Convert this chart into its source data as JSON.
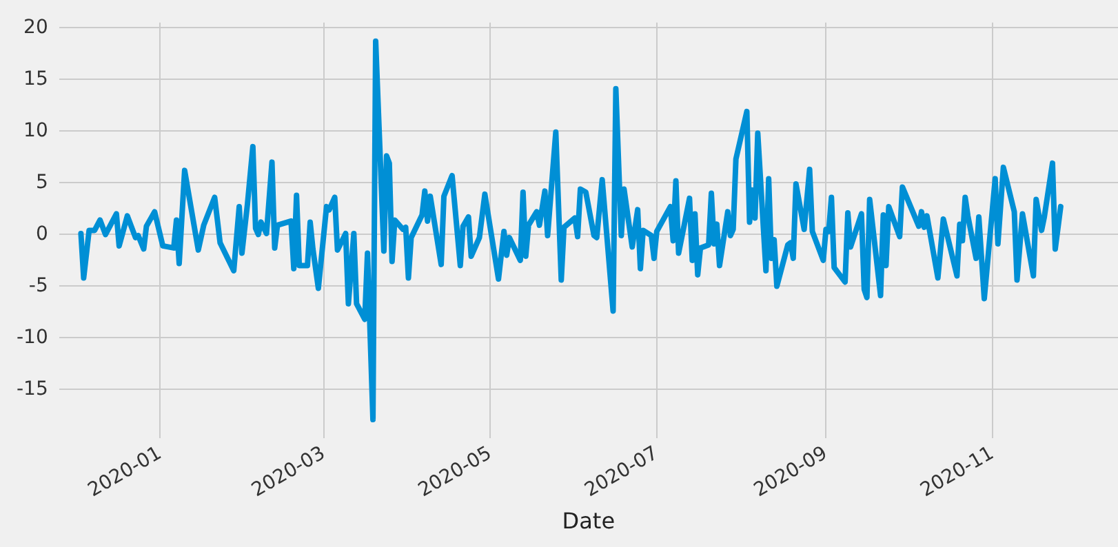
{
  "chart_data": {
    "type": "line",
    "xlabel": "Date",
    "x": [
      "2019-12-03",
      "2019-12-04",
      "2019-12-06",
      "2019-12-08",
      "2019-12-10",
      "2019-12-12",
      "2019-12-16",
      "2019-12-17",
      "2019-12-20",
      "2019-12-23",
      "2019-12-24",
      "2019-12-26",
      "2019-12-27",
      "2019-12-30",
      "2020-01-02",
      "2020-01-06",
      "2020-01-07",
      "2020-01-08",
      "2020-01-10",
      "2020-01-15",
      "2020-01-17",
      "2020-01-21",
      "2020-01-23",
      "2020-01-28",
      "2020-01-30",
      "2020-01-31",
      "2020-02-02",
      "2020-02-04",
      "2020-02-05",
      "2020-02-06",
      "2020-02-07",
      "2020-02-09",
      "2020-02-11",
      "2020-02-12",
      "2020-02-13",
      "2020-02-18",
      "2020-02-19",
      "2020-02-20",
      "2020-02-21",
      "2020-02-24",
      "2020-02-25",
      "2020-02-26",
      "2020-02-28",
      "2020-03-02",
      "2020-03-03",
      "2020-03-05",
      "2020-03-06",
      "2020-03-09",
      "2020-03-10",
      "2020-03-12",
      "2020-03-13",
      "2020-03-16",
      "2020-03-17",
      "2020-03-19",
      "2020-03-20",
      "2020-03-23",
      "2020-03-24",
      "2020-03-25",
      "2020-03-26",
      "2020-03-27",
      "2020-03-30",
      "2020-03-31",
      "2020-04-01",
      "2020-04-02",
      "2020-04-06",
      "2020-04-07",
      "2020-04-08",
      "2020-04-09",
      "2020-04-13",
      "2020-04-14",
      "2020-04-17",
      "2020-04-20",
      "2020-04-21",
      "2020-04-23",
      "2020-04-24",
      "2020-04-27",
      "2020-04-29",
      "2020-05-04",
      "2020-05-06",
      "2020-05-07",
      "2020-05-08",
      "2020-05-12",
      "2020-05-13",
      "2020-05-14",
      "2020-05-15",
      "2020-05-18",
      "2020-05-19",
      "2020-05-21",
      "2020-05-22",
      "2020-05-25",
      "2020-05-27",
      "2020-05-28",
      "2020-06-01",
      "2020-06-02",
      "2020-06-03",
      "2020-06-05",
      "2020-06-08",
      "2020-06-09",
      "2020-06-11",
      "2020-06-15",
      "2020-06-16",
      "2020-06-18",
      "2020-06-19",
      "2020-06-22",
      "2020-06-24",
      "2020-06-25",
      "2020-06-26",
      "2020-06-29",
      "2020-06-30",
      "2020-07-01",
      "2020-07-06",
      "2020-07-07",
      "2020-07-08",
      "2020-07-09",
      "2020-07-13",
      "2020-07-14",
      "2020-07-15",
      "2020-07-16",
      "2020-07-17",
      "2020-07-20",
      "2020-07-21",
      "2020-07-22",
      "2020-07-23",
      "2020-07-24",
      "2020-07-27",
      "2020-07-28",
      "2020-07-29",
      "2020-07-30",
      "2020-08-03",
      "2020-08-04",
      "2020-08-05",
      "2020-08-06",
      "2020-08-07",
      "2020-08-10",
      "2020-08-11",
      "2020-08-12",
      "2020-08-13",
      "2020-08-14",
      "2020-08-18",
      "2020-08-19",
      "2020-08-20",
      "2020-08-21",
      "2020-08-24",
      "2020-08-26",
      "2020-08-27",
      "2020-08-31",
      "2020-09-01",
      "2020-09-02",
      "2020-09-03",
      "2020-09-04",
      "2020-09-08",
      "2020-09-09",
      "2020-09-10",
      "2020-09-14",
      "2020-09-15",
      "2020-09-16",
      "2020-09-17",
      "2020-09-21",
      "2020-09-22",
      "2020-09-23",
      "2020-09-24",
      "2020-09-28",
      "2020-09-29",
      "2020-10-05",
      "2020-10-06",
      "2020-10-07",
      "2020-10-08",
      "2020-10-12",
      "2020-10-14",
      "2020-10-19",
      "2020-10-20",
      "2020-10-21",
      "2020-10-22",
      "2020-10-23",
      "2020-10-26",
      "2020-10-27",
      "2020-10-29",
      "2020-11-02",
      "2020-11-03",
      "2020-11-05",
      "2020-11-09",
      "2020-11-10",
      "2020-11-12",
      "2020-11-16",
      "2020-11-17",
      "2020-11-19",
      "2020-11-20",
      "2020-11-23",
      "2020-11-24",
      "2020-11-26"
    ],
    "series": [
      {
        "color": "#008fd5",
        "values": [
          0.1,
          -4.2,
          0.4,
          0.4,
          1.4,
          0,
          2.0,
          -1.1,
          1.8,
          -0.3,
          -0.1,
          -1.4,
          0.8,
          2.2,
          -1.1,
          -1.3,
          1.4,
          -2.8,
          6.2,
          -1.5,
          0.9,
          3.6,
          -0.8,
          -3.5,
          2.7,
          -1.8,
          2.9,
          8.5,
          0.6,
          0,
          1.2,
          0.1,
          7.0,
          -1.3,
          0.9,
          1.3,
          -3.3,
          3.8,
          -3.0,
          -3.0,
          1.2,
          -1.4,
          -5.2,
          2.7,
          2.4,
          3.6,
          -1.5,
          0.1,
          -6.7,
          0.1,
          -6.7,
          -8.2,
          -1.8,
          -17.9,
          18.7,
          -1.6,
          7.6,
          6.9,
          -2.6,
          1.4,
          0.5,
          0.7,
          -4.2,
          -0.3,
          1.9,
          4.2,
          1.3,
          3.7,
          -2.9,
          3.7,
          5.7,
          -3.0,
          0.8,
          1.7,
          -2.1,
          -0.3,
          3.9,
          -4.3,
          0.3,
          -2.0,
          -0.3,
          -2.5,
          4.1,
          -2.1,
          0.9,
          2.2,
          0.9,
          4.2,
          -0.1,
          9.9,
          -4.4,
          0.7,
          1.6,
          -0.2,
          4.4,
          4.1,
          -0.1,
          -0.3,
          5.3,
          -7.4,
          14.1,
          -0.1,
          4.4,
          -1.2,
          2.4,
          -3.3,
          0.4,
          -0.1,
          -2.3,
          0.3,
          2.7,
          -0.6,
          5.2,
          -1.8,
          3.5,
          -2.5,
          2.0,
          -3.9,
          -1.3,
          -1.0,
          4.0,
          -0.9,
          1.0,
          -3.0,
          2.2,
          -0.1,
          0.5,
          7.3,
          11.9,
          1.2,
          4.3,
          1.6,
          9.8,
          -3.5,
          5.4,
          -2.3,
          -0.5,
          -5.0,
          -1.0,
          -0.8,
          -2.3,
          4.9,
          0.5,
          6.3,
          0.3,
          -2.5,
          0.5,
          0.3,
          3.6,
          -3.2,
          -4.6,
          2.1,
          -1.2,
          2.0,
          -5.3,
          -6.1,
          3.4,
          -5.9,
          1.9,
          -3.0,
          2.7,
          -0.2,
          4.6,
          0.8,
          2.2,
          0.7,
          1.8,
          -4.2,
          1.5,
          -4.0,
          1.0,
          -0.6,
          3.6,
          1.8,
          -2.3,
          1.7,
          -6.2,
          5.4,
          -0.9,
          6.5,
          2.2,
          -4.4,
          2.0,
          -4.0,
          3.4,
          0.4,
          1.7,
          6.9,
          -1.4,
          2.7
        ]
      }
    ],
    "xlim": [
      "2019-11-25",
      "2020-12-17"
    ],
    "xticks": [
      {
        "value": "2020-01-01",
        "label": "2020-01"
      },
      {
        "value": "2020-03-01",
        "label": "2020-03"
      },
      {
        "value": "2020-05-01",
        "label": "2020-05"
      },
      {
        "value": "2020-07-01",
        "label": "2020-07"
      },
      {
        "value": "2020-09-01",
        "label": "2020-09"
      },
      {
        "value": "2020-11-01",
        "label": "2020-11"
      }
    ],
    "ylim": [
      -19.7,
      20.5
    ],
    "yticks": [
      -15,
      -10,
      -5,
      0,
      5,
      10,
      15,
      20
    ],
    "grid": true,
    "legend": false,
    "marker": "none",
    "line_style": "solid"
  }
}
